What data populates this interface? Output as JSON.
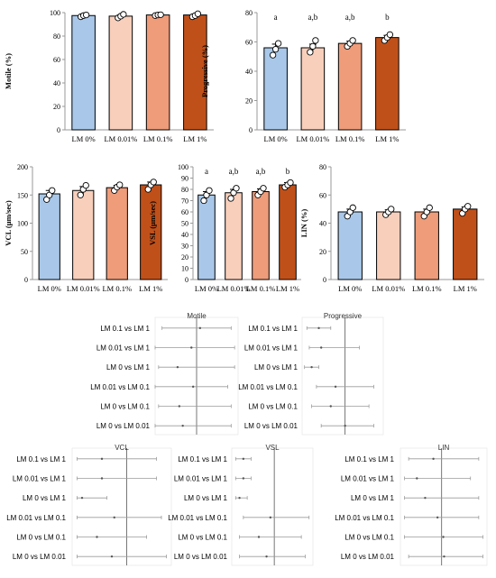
{
  "colors": {
    "bar_0": "#a9c8e9",
    "bar_001": "#f8cfbb",
    "bar_01": "#ee9c7a",
    "bar_1": "#c0501a",
    "axis": "#999999",
    "text": "#000000",
    "forest_line": "#9a9a9a",
    "forest_ref": "#555555"
  },
  "chart_data": [
    {
      "id": "motile",
      "type": "bar",
      "categories": [
        "LM 0%",
        "LM 0.01%",
        "LM 0.1%",
        "LM 1%"
      ],
      "values": [
        97.5,
        97,
        98,
        98
      ],
      "errors": [
        0.5,
        1,
        0.4,
        0.6
      ],
      "points": [
        [
          96.5,
          97.5,
          98
        ],
        [
          95.5,
          97,
          98.5
        ],
        [
          97.5,
          98,
          98.2
        ],
        [
          96.5,
          97.5,
          99
        ]
      ],
      "ylabel": "Motile (%)",
      "ylim": [
        0,
        100
      ],
      "yticks": [
        "0",
        "20",
        "40",
        "60",
        "80",
        "100"
      ],
      "letters": []
    },
    {
      "id": "progressive",
      "type": "bar",
      "categories": [
        "LM 0%",
        "LM 0.01%",
        "LM 0.1%",
        "LM 1%"
      ],
      "values": [
        56,
        56,
        59,
        63
      ],
      "errors": [
        2.5,
        2.5,
        1.5,
        1.5
      ],
      "points": [
        [
          51,
          55,
          59
        ],
        [
          53,
          57,
          61
        ],
        [
          57,
          59,
          61
        ],
        [
          61,
          63,
          65
        ]
      ],
      "ylabel": "Progressive (%)",
      "ylim": [
        0,
        80
      ],
      "yticks": [
        "0",
        "20",
        "40",
        "60",
        "80"
      ],
      "letters": [
        "a",
        "a,b",
        "a,b",
        "b"
      ]
    },
    {
      "id": "vcl",
      "type": "bar",
      "categories": [
        "LM 0%",
        "LM 0.01%",
        "LM 0.1%",
        "LM 1%"
      ],
      "values": [
        152,
        158,
        163,
        168
      ],
      "errors": [
        6,
        7,
        4,
        5
      ],
      "points": [
        [
          142,
          150,
          158
        ],
        [
          150,
          160,
          167
        ],
        [
          158,
          164,
          168
        ],
        [
          160,
          168,
          173
        ]
      ],
      "ylabel": "VCL (μm/sec)",
      "ylim": [
        0,
        200
      ],
      "yticks": [
        "0",
        "50",
        "100",
        "150",
        "200"
      ],
      "letters": []
    },
    {
      "id": "vsl",
      "type": "bar",
      "categories": [
        "LM 0%",
        "LM 0.01%",
        "LM 0.1%",
        "LM 1%"
      ],
      "values": [
        75,
        77,
        78,
        84
      ],
      "errors": [
        3,
        3,
        2.5,
        2
      ],
      "points": [
        [
          70,
          75,
          79
        ],
        [
          72,
          77,
          81
        ],
        [
          75,
          78,
          81
        ],
        [
          82,
          84,
          86
        ]
      ],
      "ylabel": "VSL (μm/sec)",
      "ylim": [
        0,
        100
      ],
      "yticks": [
        "0",
        "10",
        "20",
        "30",
        "40",
        "50",
        "60",
        "70",
        "80",
        "90",
        "100"
      ],
      "letters": [
        "a",
        "a,b",
        "a,b",
        "b"
      ]
    },
    {
      "id": "lin",
      "type": "bar",
      "categories": [
        "LM 0%",
        "LM 0.01%",
        "LM 0.1%",
        "LM 1%"
      ],
      "values": [
        48,
        48,
        48,
        50
      ],
      "errors": [
        2,
        1.5,
        2,
        1.5
      ],
      "points": [
        [
          45,
          48,
          51
        ],
        [
          46,
          48,
          50
        ],
        [
          45,
          48,
          51
        ],
        [
          47,
          50,
          52
        ]
      ],
      "ylabel": "LIN (%)",
      "ylim": [
        0,
        80
      ],
      "yticks": [
        "0",
        "20",
        "40",
        "60",
        "80"
      ],
      "letters": []
    },
    {
      "id": "motile-forest",
      "type": "forest",
      "title": "Motile",
      "comparisons": [
        "LM 0.1 vs LM 1",
        "LM 0.01 vs LM 1",
        "LM 0 vs LM 1",
        "LM 0.01 vs LM 0.1",
        "LM 0 vs LM 0.1",
        "LM 0 vs LM 0.01"
      ],
      "estimates": [
        0.1,
        -0.15,
        -0.55,
        -0.1,
        -0.5,
        -0.4
      ],
      "ci_low": [
        -1.0,
        -1.2,
        -1.1,
        -1.2,
        -1.1,
        -1.2
      ],
      "ci_high": [
        1.0,
        1.1,
        1.1,
        0.9,
        1.0,
        1.0
      ],
      "xlim": [
        -1.2,
        1.2
      ]
    },
    {
      "id": "progressive-forest",
      "type": "forest",
      "title": "Progressive",
      "comparisons": [
        "LM 0.1 vs LM 1",
        "LM 0.01 vs LM 1",
        "LM 0 vs LM 1",
        "LM 0.01 vs LM 0.1",
        "LM 0 vs LM 0.1",
        "LM 0 vs LM 0.01"
      ],
      "estimates": [
        -5.5,
        -5,
        -7,
        -2,
        -3,
        0
      ],
      "ci_low": [
        -8,
        -7.5,
        -8.5,
        -6,
        -7,
        -5
      ],
      "ci_high": [
        -3,
        3,
        -5.5,
        6,
        5,
        6
      ],
      "xlim": [
        -9,
        8
      ]
    },
    {
      "id": "vcl-forest",
      "type": "forest",
      "title": "VCL",
      "comparisons": [
        "LM 0.1 vs LM 1",
        "LM 0.01 vs LM 1",
        "LM 0 vs LM 1",
        "LM 0.01 vs LM 0.1",
        "LM 0 vs LM 0.1",
        "LM 0 vs LM 0.01"
      ],
      "estimates": [
        -10,
        -10,
        -18,
        -5,
        -12,
        -6
      ],
      "ci_low": [
        -20,
        -20,
        -20,
        -20,
        -20,
        -20
      ],
      "ci_high": [
        12,
        12,
        -8,
        14,
        8,
        16
      ],
      "xlim": [
        -22,
        18
      ]
    },
    {
      "id": "vsl-forest",
      "type": "forest",
      "title": "VSL",
      "comparisons": [
        "LM 0.1 vs LM 1",
        "LM 0.01 vs LM 1",
        "LM 0 vs LM 1",
        "LM 0.01 vs LM 0.1",
        "LM 0 vs LM 0.1",
        "LM 0 vs LM 0.01"
      ],
      "estimates": [
        -8,
        -8,
        -9,
        -1,
        -4,
        -2
      ],
      "ci_low": [
        -10,
        -10,
        -10,
        -8,
        -9,
        -9
      ],
      "ci_high": [
        -6,
        -6,
        -7,
        9,
        7,
        8
      ],
      "xlim": [
        -11,
        10
      ]
    },
    {
      "id": "lin-forest",
      "type": "forest",
      "title": "LIN",
      "comparisons": [
        "LM 0.1 vs LM 1",
        "LM 0.01 vs LM 1",
        "LM 0 vs LM 1",
        "LM 0.01 vs LM 0.1",
        "LM 0 vs LM 0.1",
        "LM 0 vs LM 0.01"
      ],
      "estimates": [
        -1,
        -3,
        -2,
        -0.5,
        0.2,
        0.3
      ],
      "ci_low": [
        -4,
        -4.5,
        -4.5,
        -4.5,
        -4.5,
        -4
      ],
      "ci_high": [
        4.5,
        3.5,
        4.5,
        4.5,
        5,
        5
      ],
      "xlim": [
        -5,
        5.5
      ]
    }
  ]
}
